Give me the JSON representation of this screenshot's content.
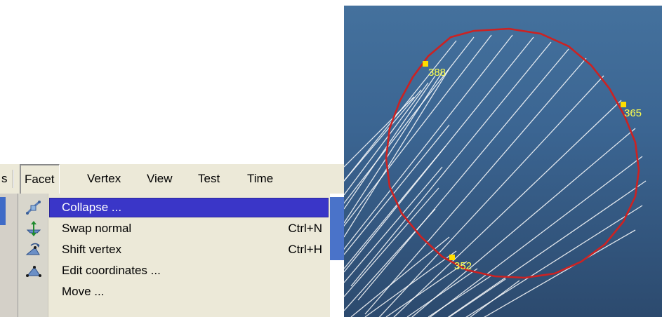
{
  "menubar": {
    "prev_item_tail": "s",
    "items": [
      {
        "label": "Facet"
      },
      {
        "label": "Vertex"
      },
      {
        "label": "View"
      },
      {
        "label": "Test"
      },
      {
        "label": "Time"
      }
    ]
  },
  "facet_menu": {
    "items": [
      {
        "label": "Collapse ...",
        "accel": "",
        "icon": "collapse-icon",
        "selected": true
      },
      {
        "label": "Swap normal",
        "accel": "Ctrl+N",
        "icon": "swap-normal-icon"
      },
      {
        "label": "Shift vertex",
        "accel": "Ctrl+H",
        "icon": "shift-vertex-icon"
      },
      {
        "label": "Edit coordinates ...",
        "accel": "",
        "icon": "edit-coordinates-icon"
      },
      {
        "label": "Move ...",
        "accel": ""
      }
    ]
  },
  "viewport": {
    "colors": {
      "background_top": "#44719d",
      "background_bottom": "#2c4a6e",
      "boundary": "#cc2222",
      "mesh_lines": "#ffffff",
      "vertex_marker": "#ffdd00",
      "vertex_label": "#ffff4d",
      "menu_highlight": "#3a36c8"
    },
    "vertex_labels": [
      "388",
      "365",
      "352"
    ]
  }
}
